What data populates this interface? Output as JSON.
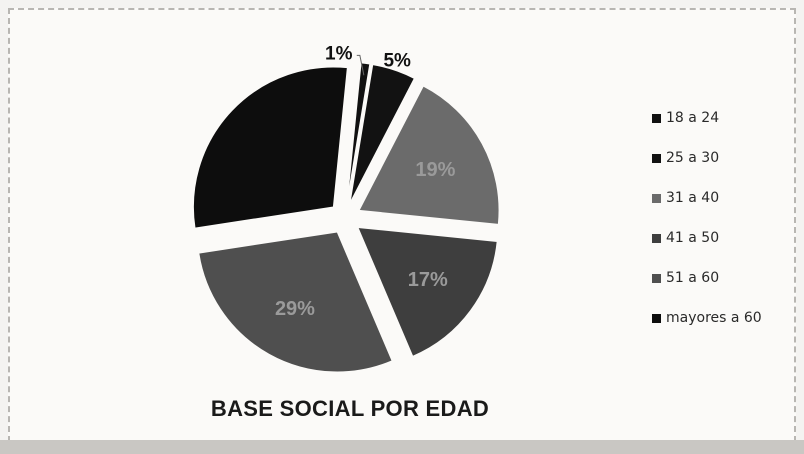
{
  "chart_data": {
    "type": "pie",
    "title": "BASE SOCIAL POR EDAD",
    "exploded": true,
    "legend_position": "right",
    "slices": [
      {
        "label": "18 a 24",
        "value": 1,
        "data_label": "1%",
        "color": "#111111"
      },
      {
        "label": "25 a 30",
        "value": 5,
        "data_label": "5%",
        "color": "#121212"
      },
      {
        "label": "31 a 40",
        "value": 19,
        "data_label": "19%",
        "color": "#6b6b6b"
      },
      {
        "label": "41 a 50",
        "value": 17,
        "data_label": "17%",
        "color": "#3e3e3e"
      },
      {
        "label": "51 a 60",
        "value": 29,
        "data_label": "29%",
        "color": "#4f4f4f"
      },
      {
        "label": "mayores a 60",
        "value": 29,
        "data_label": "",
        "color": "#0d0d0d"
      }
    ]
  }
}
